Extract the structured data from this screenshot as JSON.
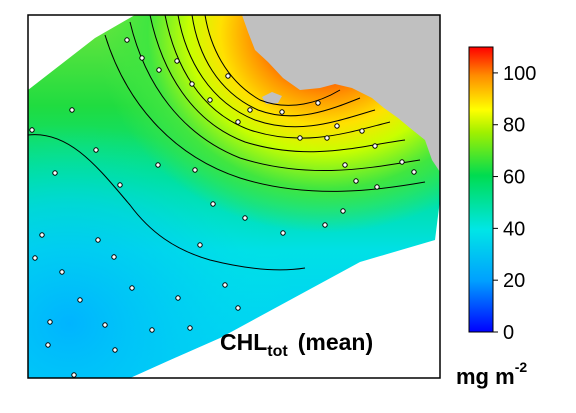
{
  "map": {
    "land_color": "#c0c0c0",
    "no_data_color": "#ffffff",
    "contour_color": "#000000",
    "station_marker": "open-circle"
  },
  "title": {
    "main": "CHL",
    "subscript": "tot",
    "suffix": "(mean)"
  },
  "colorbar": {
    "min": 0,
    "max": 110,
    "ticks": [
      "0",
      "20",
      "40",
      "60",
      "80",
      "100"
    ],
    "units_main": "mg m",
    "units_exponent": "-2",
    "colors": [
      "#0000ff",
      "#00b4ff",
      "#00e6e6",
      "#00dc50",
      "#c8ff00",
      "#ffff00",
      "#ff8c00",
      "#ff0000"
    ]
  }
}
